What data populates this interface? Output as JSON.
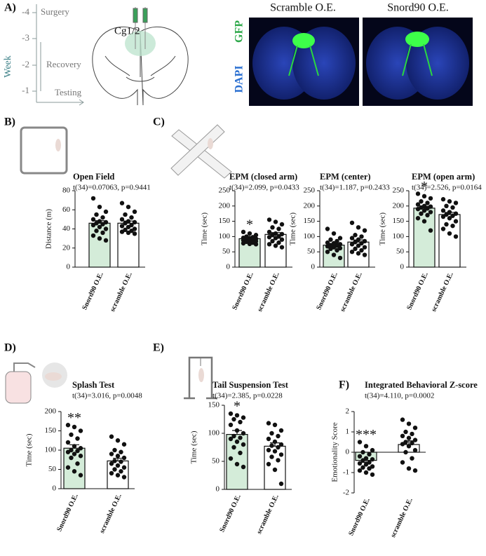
{
  "panel_a": {
    "label": "A)",
    "week_label": "Week",
    "weeks": [
      -4,
      -3,
      -2,
      -1
    ],
    "phases": [
      "Surgery",
      "Recovery",
      "Testing"
    ],
    "region": "Cg1/2",
    "image_titles": [
      "Scramble O.E.",
      "Snord90 O.E."
    ],
    "stains": [
      "GFP",
      "DAPI"
    ]
  },
  "chart_data": [
    {
      "type": "bar",
      "panel_label": "B)",
      "title": "Open Field",
      "subtitle": "t(34)=0.07063, p=0.9441",
      "y_label": "Distance (m)",
      "categories": [
        "Snord90 O.E.",
        "scramble O.E."
      ],
      "values": [
        46,
        46
      ],
      "errors": [
        2.6,
        2.3
      ],
      "points": [
        [
          72,
          63,
          58,
          55,
          52,
          50,
          48,
          47,
          46,
          45,
          44,
          42,
          40,
          38,
          36,
          33,
          30,
          28
        ],
        [
          67,
          63,
          58,
          55,
          52,
          50,
          48,
          47,
          46,
          44,
          43,
          42,
          40,
          39,
          38,
          37,
          36,
          35
        ]
      ],
      "colors": [
        "#d4ecd9",
        "#ffffff"
      ],
      "ylim": [
        0,
        80
      ],
      "yticks": [
        0,
        20,
        40,
        60,
        80
      ]
    },
    {
      "type": "bar",
      "panel_label": "C)",
      "title": "EPM (closed arm)",
      "subtitle": "t(34)=2.099, p=0.0433",
      "y_label": "Time (sec)",
      "categories": [
        "Snord90 O.E.",
        "scramble O.E."
      ],
      "values": [
        93,
        107
      ],
      "errors": [
        3,
        6
      ],
      "points": [
        [
          115,
          110,
          105,
          100,
          98,
          96,
          95,
          93,
          92,
          90,
          88,
          86,
          85,
          83,
          80,
          78,
          76,
          75
        ],
        [
          155,
          148,
          140,
          130,
          125,
          115,
          110,
          108,
          105,
          100,
          98,
          95,
          90,
          85,
          80,
          75,
          70,
          65
        ]
      ],
      "significance": "*",
      "colors": [
        "#d4ecd9",
        "#ffffff"
      ],
      "ylim": [
        0,
        250
      ],
      "yticks": [
        0,
        50,
        100,
        150,
        200,
        250
      ]
    },
    {
      "type": "bar",
      "title": "EPM (center)",
      "subtitle": "t(34)=1.187, p=0.2433",
      "y_label": "Time (sec)",
      "categories": [
        "Snord90 O.E.",
        "scramble O.E."
      ],
      "values": [
        72,
        82
      ],
      "errors": [
        5,
        7
      ],
      "points": [
        [
          125,
          110,
          95,
          90,
          85,
          80,
          78,
          75,
          72,
          70,
          68,
          65,
          62,
          60,
          55,
          50,
          40,
          30
        ],
        [
          145,
          130,
          120,
          105,
          100,
          95,
          90,
          85,
          82,
          78,
          75,
          70,
          65,
          60,
          55,
          50,
          45,
          40
        ]
      ],
      "colors": [
        "#d4ecd9",
        "#ffffff"
      ],
      "ylim": [
        0,
        250
      ],
      "yticks": [
        0,
        50,
        100,
        150,
        200,
        250
      ]
    },
    {
      "type": "bar",
      "title": "EPM (open arm)",
      "subtitle": "t(34)=2.526, p=0.0164",
      "y_label": "Time (sec)",
      "categories": [
        "Snord90 O.E.",
        "scramble O.E."
      ],
      "values": [
        193,
        172
      ],
      "errors": [
        6,
        7
      ],
      "points": [
        [
          240,
          232,
          225,
          215,
          210,
          205,
          200,
          198,
          195,
          192,
          190,
          185,
          180,
          175,
          170,
          160,
          150,
          120
        ],
        [
          222,
          215,
          210,
          200,
          195,
          185,
          180,
          175,
          172,
          168,
          165,
          160,
          150,
          140,
          135,
          125,
          110,
          100
        ]
      ],
      "significance": "*",
      "colors": [
        "#d4ecd9",
        "#ffffff"
      ],
      "ylim": [
        0,
        250
      ],
      "yticks": [
        0,
        50,
        100,
        150,
        200,
        250
      ]
    },
    {
      "type": "bar",
      "panel_label": "D)",
      "title": "Splash Test",
      "subtitle": "t(34)=3.016, p=0.0048",
      "y_label": "Time (sec)",
      "categories": [
        "Snord90 O.E.",
        "scramble O.E."
      ],
      "values": [
        105,
        72
      ],
      "errors": [
        9,
        7
      ],
      "points": [
        [
          165,
          160,
          150,
          140,
          130,
          120,
          110,
          105,
          100,
          98,
          95,
          90,
          85,
          80,
          65,
          55,
          45,
          35
        ],
        [
          135,
          125,
          115,
          100,
          95,
          90,
          85,
          80,
          72,
          70,
          65,
          60,
          55,
          50,
          45,
          40,
          35,
          30
        ]
      ],
      "significance": "**",
      "colors": [
        "#d4ecd9",
        "#ffffff"
      ],
      "ylim": [
        0,
        200
      ],
      "yticks": [
        0,
        50,
        100,
        150,
        200
      ]
    },
    {
      "type": "bar",
      "panel_label": "E)",
      "title": "Tail Suspension Test",
      "subtitle": "t(34)=2.385, p=0.0228",
      "y_label": "Time (sec)",
      "categories": [
        "Snord90 O.E.",
        "scramble O.E."
      ],
      "values": [
        98,
        77
      ],
      "errors": [
        7,
        6
      ],
      "points": [
        [
          135,
          132,
          128,
          125,
          120,
          115,
          105,
          100,
          95,
          92,
          90,
          85,
          80,
          75,
          65,
          55,
          45,
          40
        ],
        [
          118,
          115,
          105,
          100,
          95,
          90,
          85,
          80,
          78,
          75,
          70,
          68,
          62,
          58,
          52,
          45,
          35,
          10
        ]
      ],
      "significance": "*",
      "colors": [
        "#d4ecd9",
        "#ffffff"
      ],
      "ylim": [
        0,
        150
      ],
      "yticks": [
        0,
        50,
        100,
        150
      ]
    },
    {
      "type": "bar",
      "panel_label": "F)",
      "title": "Integrated Behavioral Z-score",
      "subtitle": "t(34)=4.110, p=0.0002",
      "y_label": "Emotionality Score",
      "categories": [
        "Snord90 O.E.",
        "scramble O.E."
      ],
      "values": [
        -0.4,
        0.38
      ],
      "errors": [
        0.1,
        0.18
      ],
      "points": [
        [
          0.5,
          0.3,
          0.1,
          0,
          -0.1,
          -0.2,
          -0.3,
          -0.35,
          -0.4,
          -0.5,
          -0.55,
          -0.6,
          -0.7,
          -0.75,
          -0.8,
          -0.9,
          -1.0,
          -1.1
        ],
        [
          1.6,
          1.4,
          1.2,
          1.0,
          0.9,
          0.8,
          0.7,
          0.6,
          0.5,
          0.45,
          0.4,
          0.3,
          0.1,
          0,
          -0.3,
          -0.5,
          -0.8,
          -0.9
        ]
      ],
      "significance": "***",
      "colors": [
        "#d4ecd9",
        "#ffffff"
      ],
      "ylim": [
        -2,
        2
      ],
      "yticks": [
        -2,
        -1,
        0,
        1,
        2
      ]
    }
  ]
}
